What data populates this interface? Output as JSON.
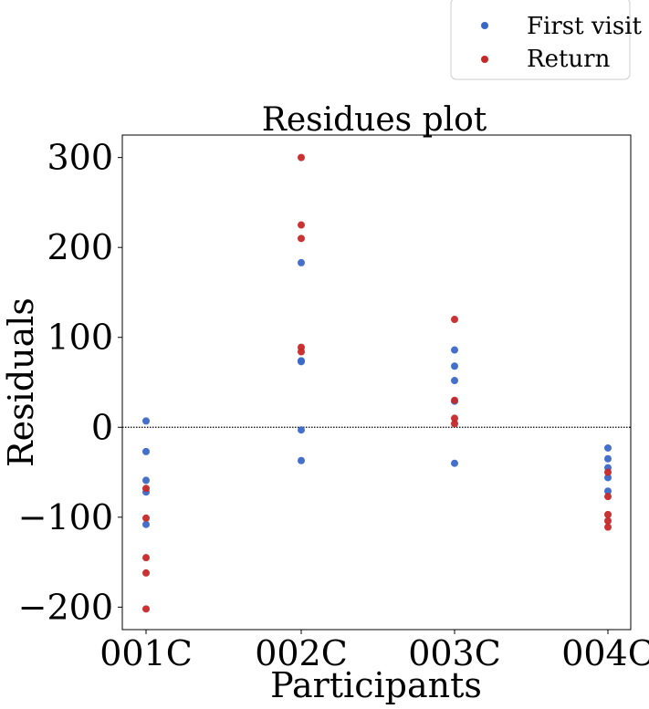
{
  "chart_data": {
    "type": "scatter",
    "title": "Residues plot",
    "xlabel": "Participants",
    "ylabel": "Residuals",
    "categories": [
      "001C",
      "002C",
      "003C",
      "004C"
    ],
    "ylim": [
      -225,
      325
    ],
    "yticks": [
      -200,
      -100,
      0,
      100,
      200,
      300
    ],
    "ytick_labels": [
      "−200",
      "−100",
      "0",
      "100",
      "200",
      "300"
    ],
    "reference_line": {
      "y": 0,
      "style": "dotted"
    },
    "grid": false,
    "legend_position": "top-right",
    "series": [
      {
        "name": "First visit",
        "color": "#3a68c8",
        "points": [
          {
            "x": "001C",
            "y": 7
          },
          {
            "x": "001C",
            "y": -27
          },
          {
            "x": "001C",
            "y": -59
          },
          {
            "x": "001C",
            "y": -72
          },
          {
            "x": "001C",
            "y": -108
          },
          {
            "x": "002C",
            "y": 183
          },
          {
            "x": "002C",
            "y": 74
          },
          {
            "x": "002C",
            "y": 73
          },
          {
            "x": "002C",
            "y": -3
          },
          {
            "x": "002C",
            "y": -37
          },
          {
            "x": "003C",
            "y": 86
          },
          {
            "x": "003C",
            "y": 68
          },
          {
            "x": "003C",
            "y": 52
          },
          {
            "x": "003C",
            "y": 29
          },
          {
            "x": "003C",
            "y": -40
          },
          {
            "x": "004C",
            "y": -23
          },
          {
            "x": "004C",
            "y": -35
          },
          {
            "x": "004C",
            "y": -45
          },
          {
            "x": "004C",
            "y": -56
          },
          {
            "x": "004C",
            "y": -71
          }
        ]
      },
      {
        "name": "Return",
        "color": "#c62828",
        "points": [
          {
            "x": "001C",
            "y": -68
          },
          {
            "x": "001C",
            "y": -101
          },
          {
            "x": "001C",
            "y": -145
          },
          {
            "x": "001C",
            "y": -162
          },
          {
            "x": "001C",
            "y": -202
          },
          {
            "x": "002C",
            "y": 300
          },
          {
            "x": "002C",
            "y": 225
          },
          {
            "x": "002C",
            "y": 210
          },
          {
            "x": "002C",
            "y": 89
          },
          {
            "x": "002C",
            "y": 84
          },
          {
            "x": "003C",
            "y": 120
          },
          {
            "x": "003C",
            "y": 30
          },
          {
            "x": "003C",
            "y": 10
          },
          {
            "x": "003C",
            "y": 4
          },
          {
            "x": "004C",
            "y": -50
          },
          {
            "x": "004C",
            "y": -77
          },
          {
            "x": "004C",
            "y": -97
          },
          {
            "x": "004C",
            "y": -104
          },
          {
            "x": "004C",
            "y": -111
          }
        ]
      }
    ]
  }
}
